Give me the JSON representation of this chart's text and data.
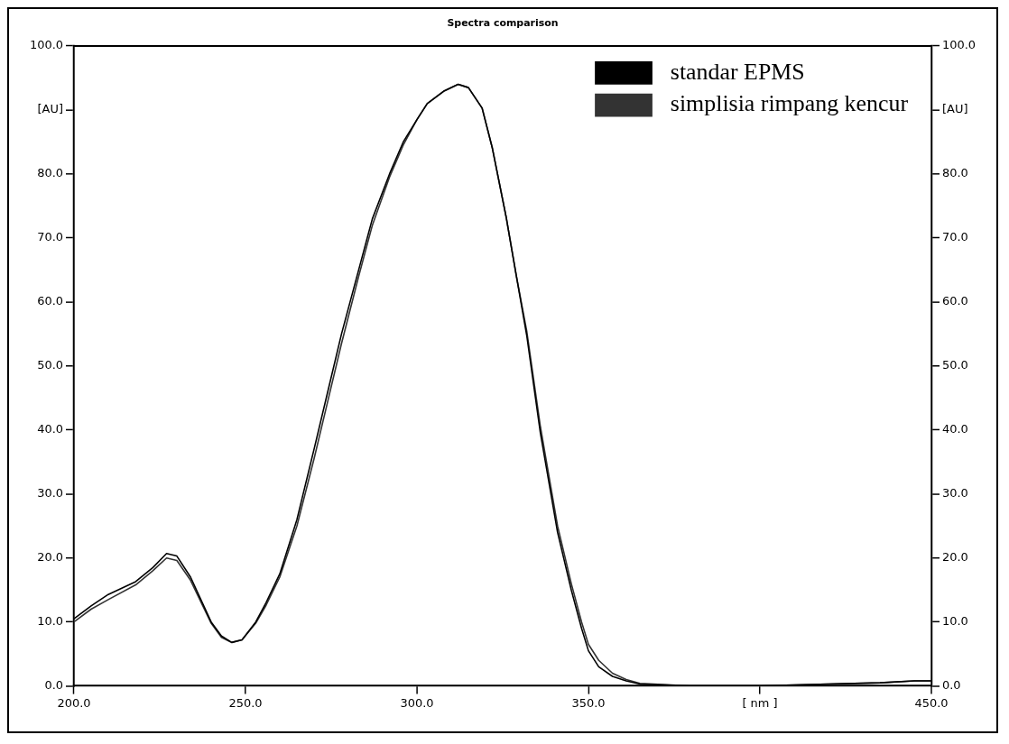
{
  "chart_data": {
    "type": "line",
    "title": "Spectra comparison",
    "x": [
      200,
      205,
      210,
      218,
      223,
      227,
      230,
      234,
      240,
      243,
      246,
      249,
      253,
      256,
      260,
      265,
      270,
      274,
      278,
      283,
      287,
      292,
      296,
      300,
      303,
      308,
      312,
      315,
      319,
      322,
      326,
      329,
      332,
      336,
      341,
      345,
      348,
      350,
      353,
      357,
      361,
      365,
      380,
      400,
      420,
      435,
      445,
      450
    ],
    "series": [
      {
        "name": "standar EPMS",
        "color": "#000000",
        "values": [
          10.5,
          12.5,
          14.3,
          16.3,
          18.5,
          20.7,
          20.3,
          17,
          10,
          7.8,
          6.8,
          7.2,
          10,
          13,
          17.5,
          26,
          37,
          46,
          55,
          65,
          73,
          80,
          85,
          88.5,
          91,
          93,
          94,
          93.5,
          90.3,
          84,
          73.3,
          64,
          54.8,
          39.5,
          24,
          15,
          9,
          5.5,
          3,
          1.5,
          0.8,
          0.3,
          0,
          0,
          0.3,
          0.5,
          0.8,
          0.8
        ]
      },
      {
        "name": "simplisia rimpang kencur",
        "color": "#333333",
        "values": [
          10,
          12,
          13.5,
          15.8,
          18,
          20,
          19.6,
          16.5,
          9.8,
          7.6,
          6.8,
          7.2,
          9.8,
          12.6,
          17,
          25,
          35.5,
          44.5,
          53.5,
          64,
          72,
          79.5,
          84.5,
          88.5,
          91,
          93,
          94,
          93.5,
          90.3,
          84,
          73.3,
          64,
          55.5,
          40.5,
          25,
          16,
          10,
          6.5,
          4,
          2,
          1,
          0.4,
          0,
          0,
          0.3,
          0.5,
          0.8,
          0.8
        ]
      }
    ],
    "xlim": [
      200,
      450
    ],
    "xticks": [
      {
        "value": 200,
        "label": "200.0"
      },
      {
        "value": 250,
        "label": "250.0"
      },
      {
        "value": 300,
        "label": "300.0"
      },
      {
        "value": 350,
        "label": "350.0"
      },
      {
        "value": 400,
        "label": "[ nm ]"
      },
      {
        "value": 450,
        "label": "450.0"
      }
    ],
    "ylim": [
      0,
      100
    ],
    "yticks": [
      {
        "value": 0,
        "label": "0.0"
      },
      {
        "value": 10,
        "label": "10.0"
      },
      {
        "value": 20,
        "label": "20.0"
      },
      {
        "value": 30,
        "label": "30.0"
      },
      {
        "value": 40,
        "label": "40.0"
      },
      {
        "value": 50,
        "label": "50.0"
      },
      {
        "value": 60,
        "label": "60.0"
      },
      {
        "value": 70,
        "label": "70.0"
      },
      {
        "value": 80,
        "label": "80.0"
      },
      {
        "value": 90,
        "label": "[AU]"
      },
      {
        "value": 100,
        "label": "100.0"
      }
    ],
    "y2lim": [
      0,
      100
    ],
    "y2ticks": [
      {
        "value": 0,
        "label": "0.0"
      },
      {
        "value": 10,
        "label": "10.0"
      },
      {
        "value": 20,
        "label": "20.0"
      },
      {
        "value": 30,
        "label": "30.0"
      },
      {
        "value": 40,
        "label": "40.0"
      },
      {
        "value": 50,
        "label": "50.0"
      },
      {
        "value": 60,
        "label": "60.0"
      },
      {
        "value": 70,
        "label": "70.0"
      },
      {
        "value": 80,
        "label": "80.0"
      },
      {
        "value": 90,
        "label": "[AU]"
      },
      {
        "value": 100,
        "label": "100.0"
      }
    ],
    "legend": "top right",
    "marker": "none",
    "line_style": "solid"
  }
}
